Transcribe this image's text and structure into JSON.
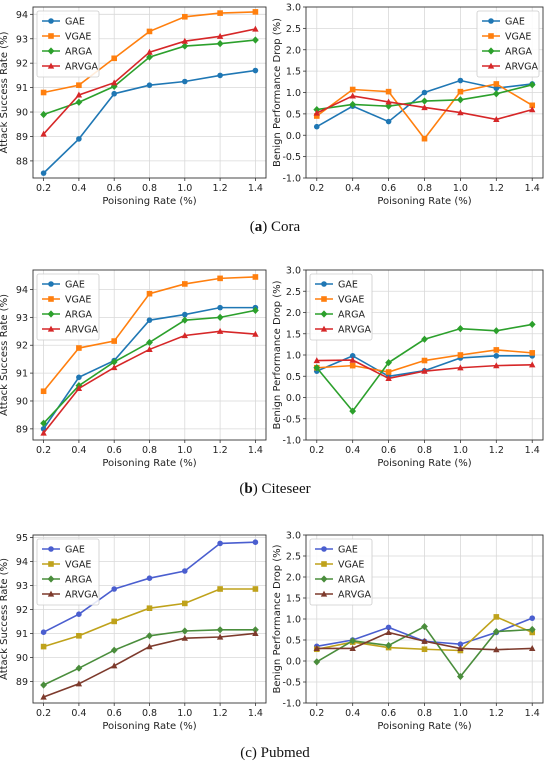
{
  "captions": [
    {
      "tag": "(a)",
      "letter": "a",
      "name": "Cora"
    },
    {
      "tag": "(b)",
      "letter": "b",
      "name": "Citeseer"
    },
    {
      "tag": "(c)",
      "letter": "c",
      "name": "Pubmed"
    }
  ],
  "chart_data": [
    {
      "type": "line",
      "panel": "Cora - Attack Success Rate",
      "xlabel": "Poisoning Rate (%)",
      "ylabel": "Attack Success Rate (%)",
      "x": [
        0.2,
        0.4,
        0.6,
        0.8,
        1.0,
        1.2,
        1.4
      ],
      "xticks": [
        "0.2",
        "0.4",
        "0.6",
        "0.8",
        "1.0",
        "1.2",
        "1.4"
      ],
      "yticks": [
        88,
        89,
        90,
        91,
        92,
        93,
        94
      ],
      "ylim": [
        87.3,
        94.3
      ],
      "grid": true,
      "legend": "top-left",
      "series": [
        {
          "name": "GAE",
          "color": "#1f77b4",
          "marker": "circle",
          "values": [
            87.5,
            88.9,
            90.75,
            91.1,
            91.25,
            91.5,
            91.7
          ]
        },
        {
          "name": "VGAE",
          "color": "#ff7f0e",
          "marker": "square",
          "values": [
            90.8,
            91.1,
            92.2,
            93.3,
            93.9,
            94.05,
            94.1
          ]
        },
        {
          "name": "ARGA",
          "color": "#2ca02c",
          "marker": "diamond",
          "values": [
            89.9,
            90.4,
            91.05,
            92.25,
            92.7,
            92.8,
            92.95
          ]
        },
        {
          "name": "ARVGA",
          "color": "#d62728",
          "marker": "triangle",
          "values": [
            89.1,
            90.7,
            91.2,
            92.45,
            92.9,
            93.1,
            93.4
          ]
        }
      ]
    },
    {
      "type": "line",
      "panel": "Cora - Benign Performance Drop",
      "xlabel": "Poisoning Rate (%)",
      "ylabel": "Benign Performance Drop (%)",
      "x": [
        0.2,
        0.4,
        0.6,
        0.8,
        1.0,
        1.2,
        1.4
      ],
      "xticks": [
        "0.2",
        "0.4",
        "0.6",
        "0.8",
        "1.0",
        "1.2",
        "1.4"
      ],
      "yticks": [
        "-1.0",
        "-0.5",
        "0.0",
        "0.5",
        "1.0",
        "1.5",
        "2.0",
        "2.5",
        "3.0"
      ],
      "ylim": [
        -1.0,
        3.0
      ],
      "grid": true,
      "legend": "top-right",
      "series": [
        {
          "name": "GAE",
          "color": "#1f77b4",
          "marker": "circle",
          "values": [
            0.2,
            0.68,
            0.32,
            1.0,
            1.28,
            1.1,
            1.2
          ]
        },
        {
          "name": "VGAE",
          "color": "#ff7f0e",
          "marker": "square",
          "values": [
            0.45,
            1.07,
            1.02,
            -0.08,
            1.02,
            1.2,
            0.7
          ]
        },
        {
          "name": "ARGA",
          "color": "#2ca02c",
          "marker": "diamond",
          "values": [
            0.6,
            0.72,
            0.68,
            0.8,
            0.83,
            0.97,
            1.18
          ]
        },
        {
          "name": "ARVGA",
          "color": "#d62728",
          "marker": "triangle",
          "values": [
            0.52,
            0.92,
            0.78,
            0.65,
            0.53,
            0.37,
            0.6
          ]
        }
      ]
    },
    {
      "type": "line",
      "panel": "Citeseer - Attack Success Rate",
      "xlabel": "Poisoning Rate (%)",
      "ylabel": "Attack Success Rate (%)",
      "x": [
        0.2,
        0.4,
        0.6,
        0.8,
        1.0,
        1.2,
        1.4
      ],
      "xticks": [
        "0.2",
        "0.4",
        "0.6",
        "0.8",
        "1.0",
        "1.2",
        "1.4"
      ],
      "yticks": [
        89,
        90,
        91,
        92,
        93,
        94
      ],
      "ylim": [
        88.6,
        94.7
      ],
      "grid": true,
      "legend": "top-left",
      "series": [
        {
          "name": "GAE",
          "color": "#1f77b4",
          "marker": "circle",
          "values": [
            89.0,
            90.85,
            91.45,
            92.9,
            93.1,
            93.35,
            93.35
          ]
        },
        {
          "name": "VGAE",
          "color": "#ff7f0e",
          "marker": "square",
          "values": [
            90.35,
            91.9,
            92.15,
            93.85,
            94.2,
            94.4,
            94.45
          ]
        },
        {
          "name": "ARGA",
          "color": "#2ca02c",
          "marker": "diamond",
          "values": [
            89.2,
            90.55,
            91.4,
            92.1,
            92.9,
            93.0,
            93.25
          ]
        },
        {
          "name": "ARVGA",
          "color": "#d62728",
          "marker": "triangle",
          "values": [
            88.85,
            90.45,
            91.2,
            91.85,
            92.35,
            92.5,
            92.4
          ]
        }
      ]
    },
    {
      "type": "line",
      "panel": "Citeseer - Benign Performance Drop",
      "xlabel": "Poisoning Rate (%)",
      "ylabel": "Benign Performance Drop (%)",
      "x": [
        0.2,
        0.4,
        0.6,
        0.8,
        1.0,
        1.2,
        1.4
      ],
      "xticks": [
        "0.2",
        "0.4",
        "0.6",
        "0.8",
        "1.0",
        "1.2",
        "1.4"
      ],
      "yticks": [
        "-1.0",
        "-0.5",
        "0.0",
        "0.5",
        "1.0",
        "1.5",
        "2.0",
        "2.5",
        "3.0"
      ],
      "ylim": [
        -1.0,
        3.0
      ],
      "grid": true,
      "legend": "top-left",
      "series": [
        {
          "name": "GAE",
          "color": "#1f77b4",
          "marker": "circle",
          "values": [
            0.62,
            0.98,
            0.5,
            0.63,
            0.93,
            0.98,
            0.98
          ]
        },
        {
          "name": "VGAE",
          "color": "#ff7f0e",
          "marker": "square",
          "values": [
            0.7,
            0.75,
            0.6,
            0.87,
            1.0,
            1.12,
            1.05
          ]
        },
        {
          "name": "ARGA",
          "color": "#2ca02c",
          "marker": "diamond",
          "values": [
            0.7,
            -0.32,
            0.82,
            1.37,
            1.62,
            1.57,
            1.72
          ]
        },
        {
          "name": "ARVGA",
          "color": "#d62728",
          "marker": "triangle",
          "values": [
            0.87,
            0.88,
            0.45,
            0.62,
            0.7,
            0.75,
            0.77
          ]
        }
      ]
    },
    {
      "type": "line",
      "panel": "Pubmed - Attack Success Rate",
      "xlabel": "Poisoning Rate (%)",
      "ylabel": "Attack Success Rate (%)",
      "x": [
        0.2,
        0.4,
        0.6,
        0.8,
        1.0,
        1.2,
        1.4
      ],
      "xticks": [
        "0.2",
        "0.4",
        "0.6",
        "0.8",
        "1.0",
        "1.2",
        "1.4"
      ],
      "yticks": [
        89,
        90,
        91,
        92,
        93,
        94,
        95
      ],
      "ylim": [
        88.1,
        95.1
      ],
      "grid": true,
      "legend": "top-left",
      "series": [
        {
          "name": "GAE",
          "color": "#4a5ecf",
          "marker": "circle",
          "values": [
            91.05,
            91.8,
            92.85,
            93.3,
            93.6,
            94.75,
            94.8
          ]
        },
        {
          "name": "VGAE",
          "color": "#bfa21b",
          "marker": "square",
          "values": [
            90.45,
            90.9,
            91.5,
            92.05,
            92.25,
            92.85,
            92.85
          ]
        },
        {
          "name": "ARGA",
          "color": "#4a8d3c",
          "marker": "diamond",
          "values": [
            88.85,
            89.55,
            90.3,
            90.9,
            91.1,
            91.15,
            91.15
          ]
        },
        {
          "name": "ARVGA",
          "color": "#7d3a2c",
          "marker": "triangle",
          "values": [
            88.35,
            88.9,
            89.65,
            90.45,
            90.8,
            90.85,
            91.0
          ]
        }
      ]
    },
    {
      "type": "line",
      "panel": "Pubmed - Benign Performance Drop",
      "xlabel": "Poisoning Rate (%)",
      "ylabel": "Benign Performance Drop (%)",
      "x": [
        0.2,
        0.4,
        0.6,
        0.8,
        1.0,
        1.2,
        1.4
      ],
      "xticks": [
        "0.2",
        "0.4",
        "0.6",
        "0.8",
        "1.0",
        "1.2",
        "1.4"
      ],
      "yticks": [
        "-1.0",
        "-0.5",
        "0.0",
        "0.5",
        "1.0",
        "1.5",
        "2.0",
        "2.5",
        "3.0"
      ],
      "ylim": [
        -1.0,
        3.0
      ],
      "grid": true,
      "legend": "top-left",
      "series": [
        {
          "name": "GAE",
          "color": "#4a5ecf",
          "marker": "circle",
          "values": [
            0.35,
            0.5,
            0.8,
            0.47,
            0.4,
            0.68,
            1.02
          ]
        },
        {
          "name": "VGAE",
          "color": "#bfa21b",
          "marker": "square",
          "values": [
            0.28,
            0.45,
            0.32,
            0.28,
            0.25,
            1.05,
            0.68
          ]
        },
        {
          "name": "ARGA",
          "color": "#4a8d3c",
          "marker": "diamond",
          "values": [
            -0.02,
            0.48,
            0.37,
            0.82,
            -0.37,
            0.7,
            0.75
          ]
        },
        {
          "name": "ARVGA",
          "color": "#7d3a2c",
          "marker": "triangle",
          "values": [
            0.3,
            0.3,
            0.68,
            0.47,
            0.3,
            0.27,
            0.3
          ]
        }
      ]
    }
  ]
}
